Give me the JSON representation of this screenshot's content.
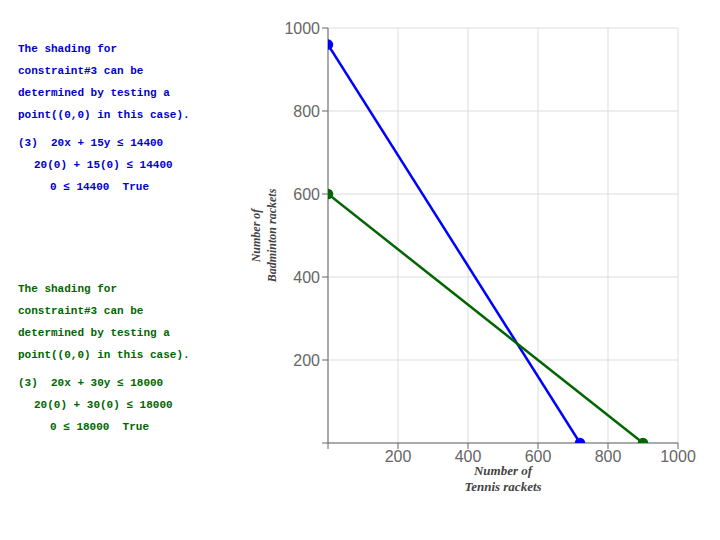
{
  "chart_data": {
    "type": "line",
    "xlabel": "Number of\nTennis rackets",
    "ylabel": "Number of\nBadminton rackets",
    "xlim": [
      0,
      1000
    ],
    "ylim": [
      0,
      1000
    ],
    "xticks": [
      {
        "value": 0,
        "label": ""
      },
      200,
      400,
      600,
      800,
      1000
    ],
    "yticks": [
      {
        "value": 0,
        "label": ""
      },
      200,
      400,
      600,
      800,
      1000
    ],
    "grid": true,
    "series": [
      {
        "color": "#0000ff",
        "x": [
          0,
          720
        ],
        "values": [
          960,
          0
        ],
        "marker": "circle"
      },
      {
        "color": "#006600",
        "x": [
          0,
          900
        ],
        "values": [
          600,
          0
        ],
        "marker": "circle"
      }
    ],
    "annotations": [
      {
        "lines": [
          "The shading for",
          "constraint#3 can be",
          "determined by testing a",
          "point((0,0) in this case)."
        ],
        "equations": [
          "(3)  20x + 15y ≤ 14400",
          "20(0) + 15(0) ≤ 14400",
          "0 ≤ 14400  True"
        ],
        "color": "#0000cc"
      },
      {
        "lines": [
          "The shading for",
          "constraint#3 can be",
          "determined by testing a",
          "point((0,0) in this case)."
        ],
        "equations": [
          "(3)  20x + 30y ≤ 18000",
          "20(0) + 30(0) ≤ 18000",
          "0 ≤ 18000  True"
        ],
        "color": "#006600"
      }
    ]
  }
}
